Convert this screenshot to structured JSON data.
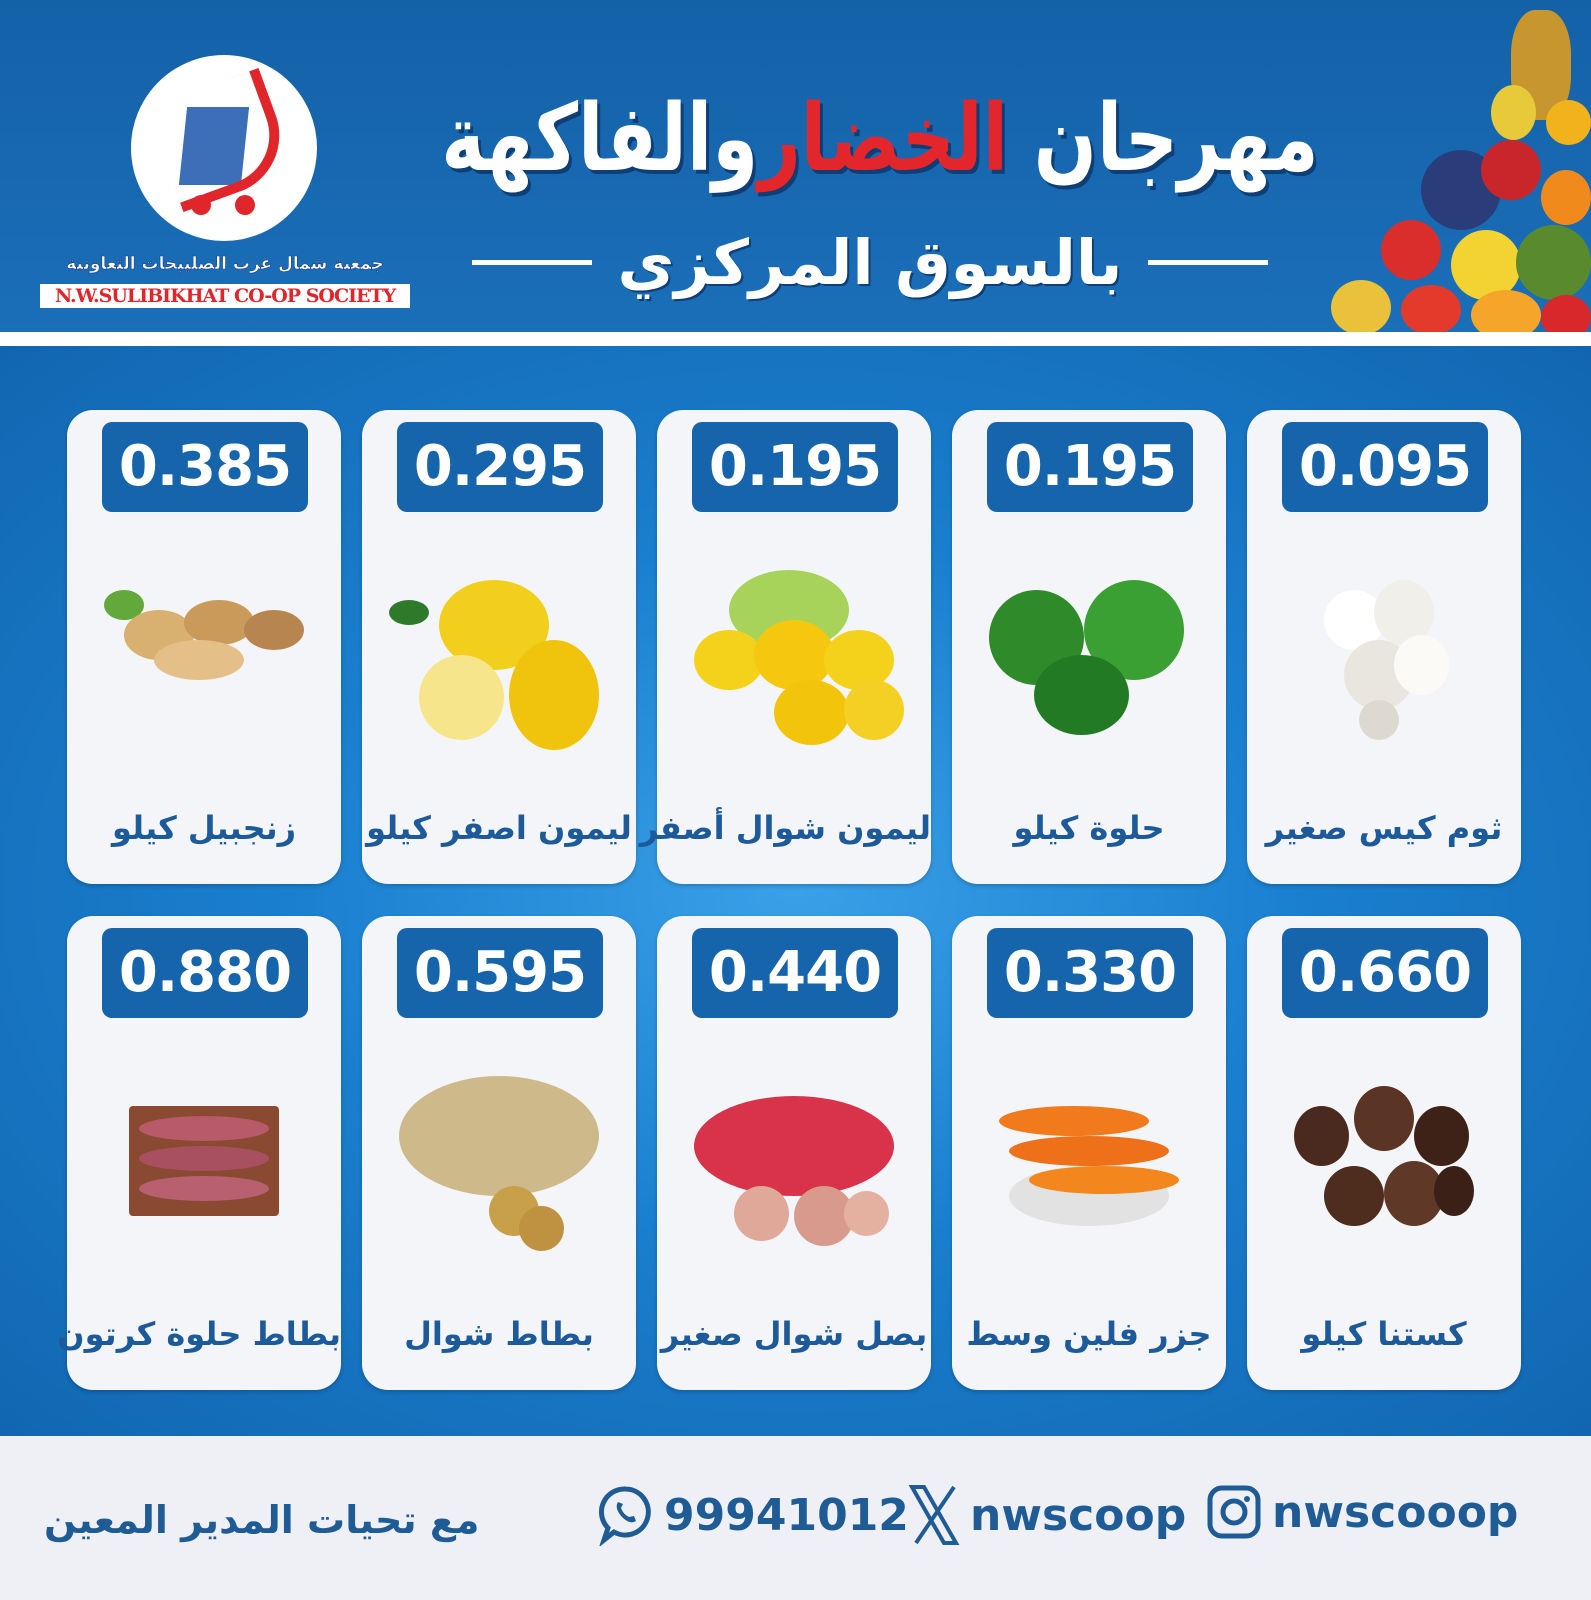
{
  "header": {
    "title_part1": "مهرجان",
    "title_highlight": "الخضار",
    "title_part2": "والفاكهة",
    "subtitle": "بالسوق المركزي",
    "logo_arabic": "جمعية شمال غرب الصليبخات التعاونية",
    "logo_english": "N.W.SULIBIKHAT CO-OP SOCIETY"
  },
  "colors": {
    "brand_blue": "#1664ac",
    "accent_red": "#e3262b",
    "text_blue": "#1f5c95"
  },
  "products": [
    {
      "name": "ثوم كيس صغير",
      "price": "0.095",
      "icon": "garlic"
    },
    {
      "name": "حلوة كيلو",
      "price": "0.195",
      "icon": "green-pepper"
    },
    {
      "name": "ليمون شوال أصفر",
      "price": "0.195",
      "icon": "lemon-bag"
    },
    {
      "name": "ليمون اصفر كيلو",
      "price": "0.295",
      "icon": "lemon"
    },
    {
      "name": "زنجبيل كيلو",
      "price": "0.385",
      "icon": "ginger"
    },
    {
      "name": "كستنا كيلو",
      "price": "0.660",
      "icon": "chestnut"
    },
    {
      "name": "جزر فلين وسط",
      "price": "0.330",
      "icon": "carrot"
    },
    {
      "name": "بصل شوال صغير",
      "price": "0.440",
      "icon": "onion-bag"
    },
    {
      "name": "بطاط شوال",
      "price": "0.595",
      "icon": "potato-bag"
    },
    {
      "name": "بطاط حلوة كرتون",
      "price": "0.880",
      "icon": "sweet-potato-box"
    }
  ],
  "footer": {
    "instagram": "nwscooop",
    "x": "nwscoop",
    "whatsapp": "99941012",
    "greeting": "مع تحيات المدير المعين"
  }
}
